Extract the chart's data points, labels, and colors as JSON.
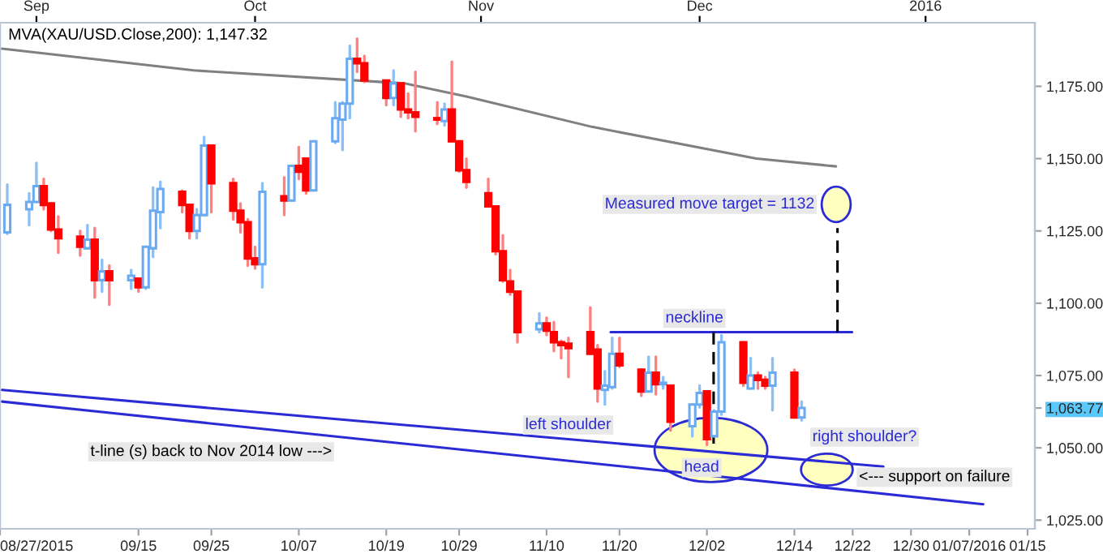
{
  "chart_data": {
    "type": "candlestick",
    "x": [
      "2015-08-28",
      "2015-08-31",
      "2015-09-01",
      "2015-09-02",
      "2015-09-03",
      "2015-09-04",
      "2015-09-07",
      "2015-09-08",
      "2015-09-09",
      "2015-09-10",
      "2015-09-11",
      "2015-09-14",
      "2015-09-15",
      "2015-09-16",
      "2015-09-17",
      "2015-09-18",
      "2015-09-21",
      "2015-09-22",
      "2015-09-23",
      "2015-09-24",
      "2015-09-25",
      "2015-09-28",
      "2015-09-29",
      "2015-09-30",
      "2015-10-01",
      "2015-10-02",
      "2015-10-05",
      "2015-10-06",
      "2015-10-07",
      "2015-10-08",
      "2015-10-09",
      "2015-10-12",
      "2015-10-13",
      "2015-10-14",
      "2015-10-15",
      "2015-10-16",
      "2015-10-19",
      "2015-10-20",
      "2015-10-21",
      "2015-10-22",
      "2015-10-23",
      "2015-10-26",
      "2015-10-27",
      "2015-10-28",
      "2015-10-29",
      "2015-10-30",
      "2015-11-02",
      "2015-11-03",
      "2015-11-04",
      "2015-11-05",
      "2015-11-06",
      "2015-11-09",
      "2015-11-10",
      "2015-11-11",
      "2015-11-12",
      "2015-11-13",
      "2015-11-16",
      "2015-11-17",
      "2015-11-18",
      "2015-11-19",
      "2015-11-20",
      "2015-11-23",
      "2015-11-24",
      "2015-11-25",
      "2015-11-26",
      "2015-11-27",
      "2015-11-30",
      "2015-12-01",
      "2015-12-02",
      "2015-12-03",
      "2015-12-04",
      "2015-12-07",
      "2015-12-08",
      "2015-12-09",
      "2015-12-10",
      "2015-12-11",
      "2015-12-14",
      "2015-12-15"
    ],
    "ohlc": [
      [
        1124.5,
        1141,
        1124,
        1134
      ],
      [
        1132.5,
        1138,
        1127,
        1135
      ],
      [
        1135,
        1148.5,
        1135,
        1140.5
      ],
      [
        1140.5,
        1143,
        1132.5,
        1134
      ],
      [
        1134.5,
        1134.5,
        1125,
        1125.5
      ],
      [
        1125.5,
        1130,
        1117.5,
        1122.5
      ],
      [
        1123,
        1125,
        1116.5,
        1119.5
      ],
      [
        1119,
        1127,
        1119,
        1122
      ],
      [
        1122,
        1126,
        1102,
        1108
      ],
      [
        1108,
        1115,
        1104,
        1111
      ],
      [
        1111,
        1113,
        1099.5,
        1108
      ],
      [
        1108,
        1111.5,
        1105,
        1109.5
      ],
      [
        1108.5,
        1108.5,
        1104,
        1105.5
      ],
      [
        1105.5,
        1119.5,
        1105,
        1119.5
      ],
      [
        1119,
        1140,
        1116,
        1132
      ],
      [
        1131.5,
        1142,
        1126,
        1139.5
      ],
      [
        1138.5,
        1139,
        1131.5,
        1134
      ],
      [
        1134,
        1134,
        1122.5,
        1125
      ],
      [
        1125,
        1132.5,
        1122.5,
        1130.5
      ],
      [
        1130.5,
        1157.5,
        1130.5,
        1154.5
      ],
      [
        1154.5,
        1154.5,
        1131.5,
        1141.5
      ],
      [
        1141.5,
        1143,
        1129,
        1132
      ],
      [
        1132,
        1134.5,
        1124.5,
        1128
      ],
      [
        1128,
        1129,
        1113,
        1115.5
      ],
      [
        1115.5,
        1119.5,
        1112,
        1113.5
      ],
      [
        1113.5,
        1141.5,
        1105.5,
        1138.5
      ],
      [
        1137,
        1143.5,
        1130.5,
        1135.5
      ],
      [
        1135.5,
        1147.5,
        1135.5,
        1147.5
      ],
      [
        1147.5,
        1154,
        1143,
        1145.5
      ],
      [
        1150,
        1150,
        1138,
        1139
      ],
      [
        1139,
        1156,
        1139,
        1156
      ],
      [
        1156,
        1169.5,
        1155.5,
        1164
      ],
      [
        1163.5,
        1169.5,
        1153,
        1169
      ],
      [
        1169,
        1189,
        1164,
        1184.5
      ],
      [
        1184.5,
        1191.5,
        1180,
        1183
      ],
      [
        1183,
        1185.5,
        1176.5,
        1177
      ],
      [
        1177,
        1177,
        1168.5,
        1171
      ],
      [
        1171,
        1180.5,
        1168.5,
        1176
      ],
      [
        1176,
        1176,
        1164.5,
        1167
      ],
      [
        1167,
        1172.5,
        1164,
        1166
      ],
      [
        1166,
        1180,
        1159.5,
        1164.5
      ],
      [
        1164,
        1169.5,
        1162,
        1163.5
      ],
      [
        1163,
        1169,
        1161.5,
        1167
      ],
      [
        1167,
        1183.5,
        1156,
        1156
      ],
      [
        1156,
        1156,
        1145.5,
        1146
      ],
      [
        1146,
        1150,
        1140,
        1142
      ],
      [
        1138,
        1143,
        1133.5,
        1133.5
      ],
      [
        1133.5,
        1133.5,
        1117,
        1118
      ],
      [
        1118,
        1123.5,
        1107.5,
        1108
      ],
      [
        1107.5,
        1111.5,
        1103,
        1104
      ],
      [
        1104,
        1104,
        1086.5,
        1090
      ],
      [
        1091,
        1096.5,
        1090,
        1093
      ],
      [
        1093,
        1095,
        1089,
        1090.5
      ],
      [
        1090,
        1093.5,
        1083.5,
        1086.5
      ],
      [
        1086.5,
        1087,
        1081,
        1085.5
      ],
      [
        1086,
        1088,
        1074.5,
        1084.5
      ],
      [
        1090,
        1098.5,
        1082.5,
        1082.5
      ],
      [
        1084,
        1085.5,
        1066,
        1070.5
      ],
      [
        1070,
        1076.5,
        1065,
        1071.5
      ],
      [
        1071,
        1088,
        1070.5,
        1082.5
      ],
      [
        1082.5,
        1088,
        1078,
        1078.5
      ],
      [
        1077,
        1077,
        1068,
        1069.5
      ],
      [
        1069.5,
        1081.5,
        1069.5,
        1076
      ],
      [
        1076,
        1081.5,
        1068.5,
        1072
      ],
      [
        1072,
        1074.5,
        1070.5,
        1072.5
      ],
      [
        1071.5,
        1071.5,
        1056,
        1059
      ],
      [
        1057.5,
        1065,
        1054,
        1065
      ],
      [
        1065,
        1071.5,
        1064,
        1069
      ],
      [
        1069.5,
        1069.5,
        1051,
        1053
      ],
      [
        1054,
        1063,
        1054,
        1062.5
      ],
      [
        1062.5,
        1089,
        1061.5,
        1086.5
      ],
      [
        1086.5,
        1086.5,
        1071.5,
        1072.5
      ],
      [
        1070.5,
        1081,
        1070.5,
        1075
      ],
      [
        1075,
        1076,
        1070.5,
        1073.5
      ],
      [
        1073.5,
        1074.5,
        1070.5,
        1071.5
      ],
      [
        1071.5,
        1081,
        1063,
        1076
      ],
      [
        1076,
        1077,
        1060.5,
        1060.5
      ],
      [
        1060.5,
        1066,
        1059.5,
        1063.77
      ]
    ],
    "series": [
      {
        "type": "line",
        "color": "#808080",
        "line_style": "solid",
        "x": [
          "2015-08-27T07:00",
          "2015-09-22T14:00",
          "2015-10-21T14:00",
          "2015-10-30",
          "2015-11-16T05:00",
          "2015-12-08T19:00",
          "2015-12-19T17:00"
        ],
        "values": [
          1188,
          1180.5,
          1176,
          1171.5,
          1161,
          1150,
          1147.32
        ]
      },
      {
        "type": "line",
        "color": "#2b2bd6",
        "line_style": "solid",
        "x": [
          "2015-11-18T19:00",
          "2015-12-21T22:00"
        ],
        "values": [
          1090,
          1090
        ]
      },
      {
        "type": "line",
        "color": "#000000",
        "line_style": "dashed",
        "x": [
          "2015-12-02T22:00",
          "2015-12-02T22:00"
        ],
        "values": [
          1090,
          1051
        ]
      },
      {
        "type": "line",
        "color": "#000000",
        "line_style": "dashed",
        "x": [
          "2015-12-19T22:00",
          "2015-12-19T22:00"
        ],
        "values": [
          1090,
          1126
        ]
      },
      {
        "type": "line",
        "color": "#2b2bd6",
        "line_style": "solid",
        "x": [
          "2015-08-27T07:00",
          "2015-12-26T05:00"
        ],
        "values": [
          1070,
          1043.5
        ]
      },
      {
        "type": "line",
        "color": "#2b2bd6",
        "line_style": "solid",
        "x": [
          "2015-08-27T07:00",
          "2016-01-08T22:00"
        ],
        "values": [
          1066,
          1030.5
        ]
      }
    ],
    "annotations": [
      "MVA(XAU/USD.Close,200): 1,147.32",
      "Measured move target = 1132",
      "neckline",
      "left shoulder",
      "head",
      "right shoulder?",
      "<--- support on failure",
      "t-line (s) back to Nov 2014 low --->"
    ],
    "xlim": [
      "2015-08-27",
      "2016-01-16"
    ],
    "xticks": [
      {
        "value": "2015-08-27",
        "label": "08/27/2015"
      },
      {
        "value": "2015-09-15",
        "label": "09/15"
      },
      {
        "value": "2015-09-25",
        "label": "09/25"
      },
      {
        "value": "2015-10-07",
        "label": "10/07"
      },
      {
        "value": "2015-10-19",
        "label": "10/19"
      },
      {
        "value": "2015-10-29",
        "label": "10/29"
      },
      {
        "value": "2015-11-10",
        "label": "11/10"
      },
      {
        "value": "2015-11-20",
        "label": "11/20"
      },
      {
        "value": "2015-12-02",
        "label": "12/02"
      },
      {
        "value": "2015-12-14",
        "label": "12/14"
      },
      {
        "value": "2015-12-22",
        "label": "12/22"
      },
      {
        "value": "2015-12-30",
        "label": "12/30"
      },
      {
        "value": "2016-01-07",
        "label": "01/07/2016"
      },
      {
        "value": "2016-01-15",
        "label": "01/15"
      }
    ],
    "x2lim": [
      "2015-08-27",
      "2016-01-16"
    ],
    "x2ticks": [
      {
        "value": "2015-09-01",
        "label": "Sep"
      },
      {
        "value": "2015-10-01",
        "label": "Oct"
      },
      {
        "value": "2015-11-01",
        "label": "Nov"
      },
      {
        "value": "2015-12-01",
        "label": "Dec"
      },
      {
        "value": "2016-01-01",
        "label": "2016"
      }
    ],
    "ylim": [
      1022,
      1197
    ],
    "yticks": [
      {
        "value": 1025,
        "label": "1,025.00"
      },
      {
        "value": 1050,
        "label": "1,050.00"
      },
      {
        "value": 1063.77,
        "label": "1,063.77"
      },
      {
        "value": 1075,
        "label": "1,075.00"
      },
      {
        "value": 1100,
        "label": "1,100.00"
      },
      {
        "value": 1125,
        "label": "1,125.00"
      },
      {
        "value": 1150,
        "label": "1,150.00"
      },
      {
        "value": 1175,
        "label": "1,175.00"
      }
    ]
  }
}
